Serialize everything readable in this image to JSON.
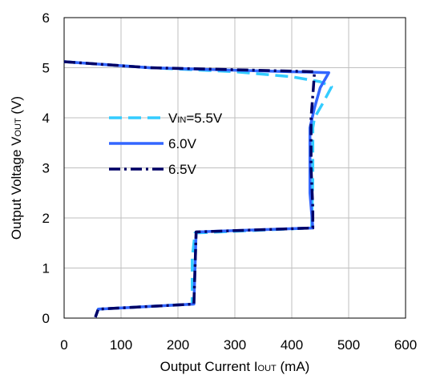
{
  "chart_data": {
    "type": "line",
    "title": "",
    "xlabel": {
      "main": "Output Current I",
      "sub": "OUT",
      "unit": " (mA)"
    },
    "ylabel": {
      "main": "Output Voltage V",
      "sub": "OUT",
      "unit": " (V)"
    },
    "xlim": [
      0,
      600
    ],
    "ylim": [
      0,
      6
    ],
    "x_ticks": [
      "0",
      "100",
      "200",
      "300",
      "400",
      "500",
      "600"
    ],
    "y_ticks": [
      "0",
      "1",
      "2",
      "3",
      "4",
      "5",
      "6"
    ],
    "grid": true,
    "legend_position": "center-left",
    "series": [
      {
        "name_main": "V",
        "name_sub": "IN",
        "name_rest": "=5.5V",
        "color": "#33CCFF",
        "dash": "dashed",
        "points": [
          [
            0,
            5.12
          ],
          [
            150,
            5.0
          ],
          [
            300,
            4.92
          ],
          [
            400,
            4.82
          ],
          [
            450,
            4.72
          ],
          [
            470,
            4.62
          ],
          [
            455,
            4.3
          ],
          [
            440,
            4.0
          ],
          [
            437,
            3.8
          ],
          [
            437,
            2.8
          ],
          [
            435,
            1.8
          ],
          [
            230,
            1.7
          ],
          [
            225,
            1.2
          ],
          [
            225,
            0.28
          ],
          [
            60,
            0.18
          ],
          [
            55,
            0.02
          ]
        ]
      },
      {
        "name_main": "",
        "name_sub": "",
        "name_rest": "6.0V",
        "color": "#3366FF",
        "dash": "solid",
        "points": [
          [
            0,
            5.12
          ],
          [
            150,
            5.0
          ],
          [
            300,
            4.95
          ],
          [
            465,
            4.9
          ],
          [
            450,
            4.6
          ],
          [
            440,
            4.2
          ],
          [
            432,
            3.8
          ],
          [
            432,
            2.5
          ],
          [
            437,
            1.8
          ],
          [
            232,
            1.72
          ],
          [
            228,
            0.28
          ],
          [
            60,
            0.18
          ],
          [
            55,
            0.02
          ]
        ]
      },
      {
        "name_main": "",
        "name_sub": "",
        "name_rest": "6.5V",
        "color": "#000066",
        "dash": "dashdot",
        "points": [
          [
            0,
            5.12
          ],
          [
            150,
            5.0
          ],
          [
            300,
            4.96
          ],
          [
            440,
            4.92
          ],
          [
            438,
            4.6
          ],
          [
            434,
            4.0
          ],
          [
            434,
            3.0
          ],
          [
            437,
            2.2
          ],
          [
            437,
            1.8
          ],
          [
            232,
            1.72
          ],
          [
            228,
            0.28
          ],
          [
            60,
            0.18
          ],
          [
            55,
            0.02
          ]
        ]
      }
    ]
  }
}
